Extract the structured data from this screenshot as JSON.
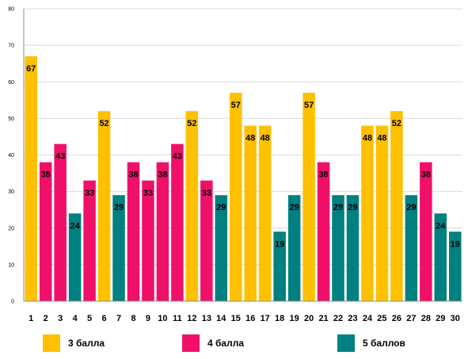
{
  "chart_data": {
    "type": "bar",
    "categories": [
      "1",
      "2",
      "3",
      "4",
      "5",
      "6",
      "7",
      "8",
      "9",
      "10",
      "11",
      "12",
      "13",
      "14",
      "15",
      "16",
      "17",
      "18",
      "19",
      "20",
      "21",
      "22",
      "23",
      "24",
      "25",
      "26",
      "27",
      "28",
      "29",
      "30"
    ],
    "values": [
      67,
      38,
      43,
      24,
      33,
      52,
      29,
      38,
      33,
      38,
      43,
      52,
      33,
      29,
      57,
      48,
      48,
      19,
      29,
      57,
      38,
      29,
      29,
      48,
      48,
      52,
      29,
      38,
      24,
      19
    ],
    "groups": [
      3,
      4,
      4,
      5,
      4,
      3,
      5,
      4,
      4,
      4,
      4,
      3,
      4,
      5,
      3,
      3,
      3,
      5,
      5,
      3,
      4,
      5,
      5,
      3,
      3,
      3,
      5,
      4,
      5,
      5
    ],
    "yticks": [
      0,
      10,
      20,
      30,
      40,
      50,
      60,
      70,
      80
    ],
    "ylim": [
      0,
      80
    ],
    "grid": true,
    "legend_position": "bottom",
    "legend": [
      {
        "key": 3,
        "label": "3 балла",
        "color": "#FFC000"
      },
      {
        "key": 4,
        "label": "4 балла",
        "color": "#F0106A"
      },
      {
        "key": 5,
        "label": "5 баллов",
        "color": "#008080"
      }
    ]
  }
}
